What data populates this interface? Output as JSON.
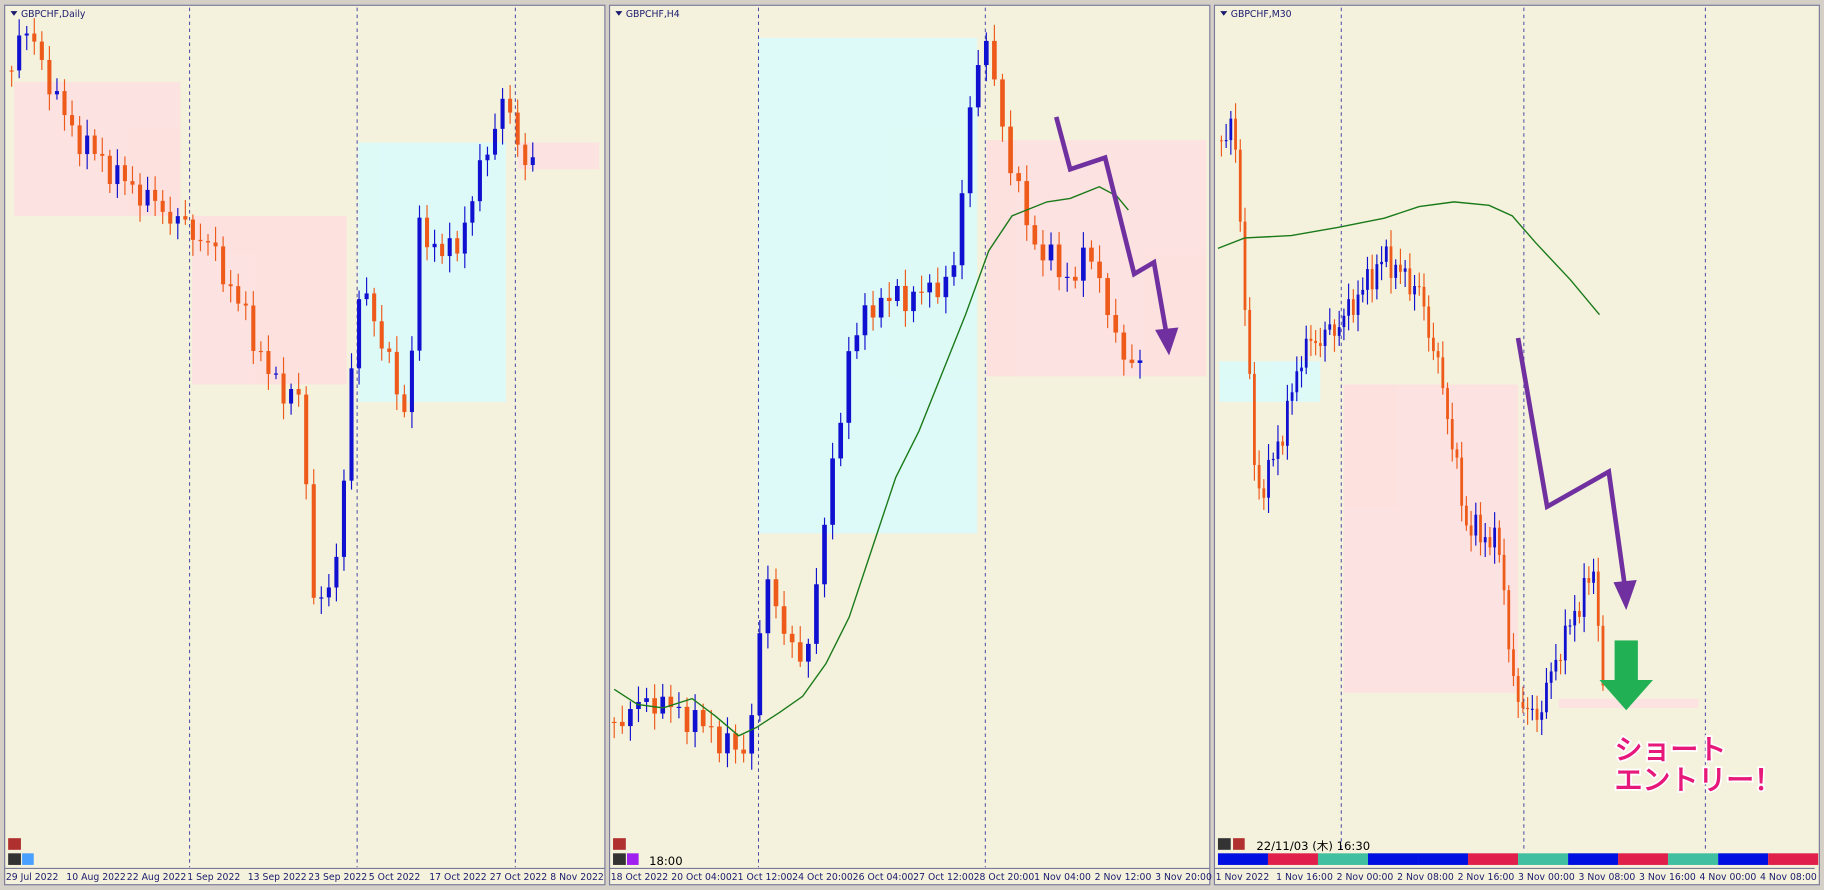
{
  "panels": [
    {
      "title": "GBPCHF,Daily",
      "x_labels": [
        "29 Jul 2022",
        "10 Aug 2022",
        "22 Aug 2022",
        "1 Sep 2022",
        "13 Sep 2022",
        "23 Sep 2022",
        "5 Oct 2022",
        "17 Oct 2022",
        "27 Oct 2022",
        "8 Nov 2022"
      ]
    },
    {
      "title": "GBPCHF,H4",
      "x_labels": [
        "18 Oct 2022",
        "20 Oct 04:00",
        "21 Oct 12:00",
        "24 Oct 20:00",
        "26 Oct 04:00",
        "27 Oct 12:00",
        "28 Oct 20:00",
        "1 Nov 04:00",
        "2 Nov 12:00",
        "3 Nov 20:00"
      ]
    },
    {
      "title": "GBPCHF,M30",
      "x_labels": [
        "1 Nov 2022",
        "1 Nov 16:00",
        "2 Nov 00:00",
        "2 Nov 08:00",
        "2 Nov 16:00",
        "3 Nov 00:00",
        "3 Nov 08:00",
        "3 Nov 16:00",
        "4 Nov 00:00",
        "4 Nov 08:00"
      ]
    }
  ],
  "overlay": {
    "time_label": "18:00",
    "cursor_time": "22/11/03 (木) 16:30",
    "annotation": [
      "ショート",
      "エントリー！"
    ]
  }
}
